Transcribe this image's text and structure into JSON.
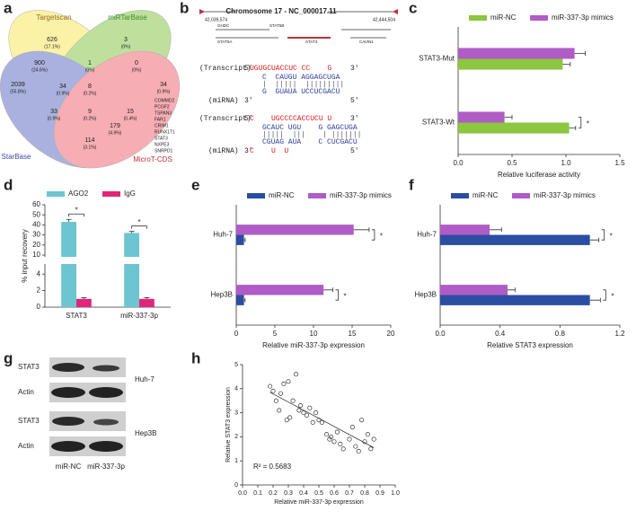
{
  "panel_labels": [
    "a",
    "b",
    "c",
    "d",
    "e",
    "f",
    "g",
    "h"
  ],
  "venn": {
    "sets": [
      "Targetscan",
      "miRTarBase",
      "StarBase",
      "MicroT-CDS"
    ],
    "regions": [
      {
        "count": "626",
        "percent": "(17.1%)"
      },
      {
        "count": "3",
        "percent": "(0%)"
      },
      {
        "count": "900",
        "percent": "(24.6%)"
      },
      {
        "count": "1",
        "percent": "(0%)"
      },
      {
        "count": "0",
        "percent": "(0%)"
      },
      {
        "count": "2039",
        "percent": "(55.8%)"
      },
      {
        "count": "34",
        "percent": "(0.9%)"
      },
      {
        "count": "8",
        "percent": "(0.2%)"
      },
      {
        "count": "34",
        "percent": "(0.9%)"
      },
      {
        "count": "33",
        "percent": "(0.9%)"
      },
      {
        "count": "9",
        "percent": "(0.2%)"
      },
      {
        "count": "179",
        "percent": "(4.9%)"
      },
      {
        "count": "15",
        "percent": "(0.4%)"
      },
      {
        "count": "114",
        "percent": "(3.1%)"
      }
    ],
    "genes": [
      "COMMD2",
      "PCGF2",
      "TSPAN3",
      "FAR1",
      "CRIM1",
      "RUNX1T1",
      "STAT3",
      "NXPE3",
      "SNRPD1"
    ]
  },
  "sequence": {
    "title": "Chromosome 17 - NC_000017.11",
    "coords": [
      "42,039,574",
      "42,444,504"
    ],
    "genes": [
      "GHDC",
      "STAT5B",
      "STAT5A",
      "STAT3",
      "CAVIN1"
    ],
    "alignments": [
      {
        "transcript_label": "(Transcript)",
        "t5": "5'",
        "transcript": "UGUGCUACCUC CC    G",
        "t3": "3'",
        "pair_top": "C  CAUGU AGGAGCUGA",
        "bonds": "|  |||||  |||||||||",
        "pair_bottom": "G  GUAUA UCCUCGACU",
        "mirna_label": "(miRNA)",
        "m3": "3'",
        "m5": "5'"
      },
      {
        "transcript_label": "(Transcript)",
        "t5": "5'",
        "transcript": "C    UGCCCCACCUCU U",
        "t3": "3'",
        "pair_top": "GCAUC UGU    G GAGCUGA",
        "bonds": "|||||  |||    | |||||||",
        "pair_bottom": "CGUAG AUA    C CUCGACU",
        "mirna_label": "(miRNA)",
        "m3": "3'",
        "mirna": "C    U  U",
        "m5": "5'"
      }
    ]
  },
  "blot": {
    "rows": [
      "STAT3",
      "Actin",
      "STAT3",
      "Actin"
    ],
    "cell_lines": [
      "Huh-7",
      "Hep3B"
    ],
    "lanes": [
      "miR-NC",
      "miR-337-3p"
    ]
  },
  "chart_data": [
    {
      "type": "hbar",
      "categories": [
        "STAT3-Mut",
        "STAT3-Wt"
      ],
      "series": [
        {
          "name": "miR-NC",
          "color": "#8dc63f",
          "values": [
            0.97,
            1.03
          ],
          "errors": [
            0.07,
            0.06
          ]
        },
        {
          "name": "miR-337-3p mimics",
          "color": "#b05cc6",
          "values": [
            1.08,
            0.43
          ],
          "errors": [
            0.1,
            0.07
          ]
        }
      ],
      "xlim": [
        0,
        1.5
      ],
      "xticks": [
        {
          "value": 0,
          "label": "0.0"
        },
        {
          "value": 0.5,
          "label": "0.5"
        },
        {
          "value": 1,
          "label": "1.0"
        },
        {
          "value": 1.5,
          "label": "1.5"
        }
      ],
      "xlabel": "Relative luciferase activity",
      "significance": [
        null,
        "*"
      ],
      "legend": "top"
    },
    {
      "type": "bar",
      "categories": [
        "STAT3",
        "miR-337-3p"
      ],
      "series": [
        {
          "name": "AGO2",
          "color": "#6cc5d1",
          "values": [
            43,
            32
          ],
          "errors": [
            2.5,
            1.5
          ]
        },
        {
          "name": "IgG",
          "color": "#e0267a",
          "values": [
            1,
            1
          ],
          "errors": [
            0.15,
            0.15
          ]
        }
      ],
      "ylim": [
        0,
        60
      ],
      "yticks": [
        0,
        2,
        4,
        10,
        20,
        30,
        40,
        50,
        60
      ],
      "y_break": [
        5,
        10
      ],
      "ylabel": "% input recovery",
      "significance": [
        "*",
        "*"
      ],
      "legend": "top"
    },
    {
      "type": "hbar",
      "categories": [
        "Huh-7",
        "Hep3B"
      ],
      "series": [
        {
          "name": "miR-NC",
          "color": "#2b4ea2",
          "values": [
            1,
            1
          ],
          "errors": [
            0.15,
            0.15
          ]
        },
        {
          "name": "miR-337-3p mimics",
          "color": "#b05cc6",
          "values": [
            15.2,
            11.3
          ],
          "errors": [
            2.0,
            1.2
          ]
        }
      ],
      "xlim": [
        0,
        20
      ],
      "xticks": [
        0,
        5,
        10,
        15,
        20
      ],
      "xlabel": "Relative miR-337-3p expression",
      "significance": [
        "*",
        "*"
      ],
      "legend": "top"
    },
    {
      "type": "hbar",
      "categories": [
        "Huh-7",
        "Hep3B"
      ],
      "series": [
        {
          "name": "miR-NC",
          "color": "#2b4ea2",
          "values": [
            1,
            1
          ],
          "errors": [
            0.06,
            0.07
          ]
        },
        {
          "name": "miR-337-3p mimics",
          "color": "#b05cc6",
          "values": [
            0.33,
            0.45
          ],
          "errors": [
            0.08,
            0.05
          ]
        }
      ],
      "xlim": [
        0,
        1.2
      ],
      "xticks": [
        {
          "value": 0,
          "label": "0.0"
        },
        {
          "value": 0.4,
          "label": "0.4"
        },
        {
          "value": 0.8,
          "label": "0.8"
        },
        {
          "value": 1.2,
          "label": "1.2"
        }
      ],
      "xlabel": "Relative STAT3 expression",
      "significance": [
        "*",
        "*"
      ],
      "legend": "top"
    },
    {
      "type": "scatter",
      "x": [
        0.18,
        0.2,
        0.22,
        0.24,
        0.25,
        0.27,
        0.29,
        0.3,
        0.31,
        0.33,
        0.35,
        0.37,
        0.38,
        0.4,
        0.42,
        0.44,
        0.46,
        0.48,
        0.5,
        0.52,
        0.55,
        0.57,
        0.58,
        0.6,
        0.62,
        0.64,
        0.66,
        0.7,
        0.72,
        0.74,
        0.76,
        0.78,
        0.8,
        0.82,
        0.84,
        0.86
      ],
      "y": [
        4.1,
        3.9,
        3.5,
        3.1,
        3.8,
        4.2,
        2.7,
        4.3,
        2.8,
        3.5,
        4.6,
        3.1,
        3.3,
        3.0,
        2.9,
        3.2,
        2.6,
        3.0,
        2.7,
        2.6,
        2.1,
        1.9,
        2.0,
        1.8,
        2.2,
        1.7,
        1.5,
        1.9,
        2.4,
        1.6,
        1.4,
        2.7,
        1.8,
        2.1,
        1.5,
        1.9
      ],
      "xlim": [
        0,
        1
      ],
      "xticks": [
        {
          "value": 0,
          "label": "0.0"
        },
        0.1,
        0.2,
        0.3,
        0.4,
        0.5,
        0.6,
        0.7,
        0.8,
        0.9,
        {
          "value": 1,
          "label": "1.0"
        }
      ],
      "ylim": [
        0,
        5
      ],
      "yticks": [
        0,
        1,
        2,
        3,
        4,
        5
      ],
      "xlabel": "Relative miR-337-3p expression",
      "ylabel": "Relative STAT3 expression",
      "trendline": {
        "x": [
          0.18,
          0.86
        ],
        "y": [
          3.85,
          1.55
        ]
      },
      "annotation": "R² = 0.5683"
    }
  ]
}
